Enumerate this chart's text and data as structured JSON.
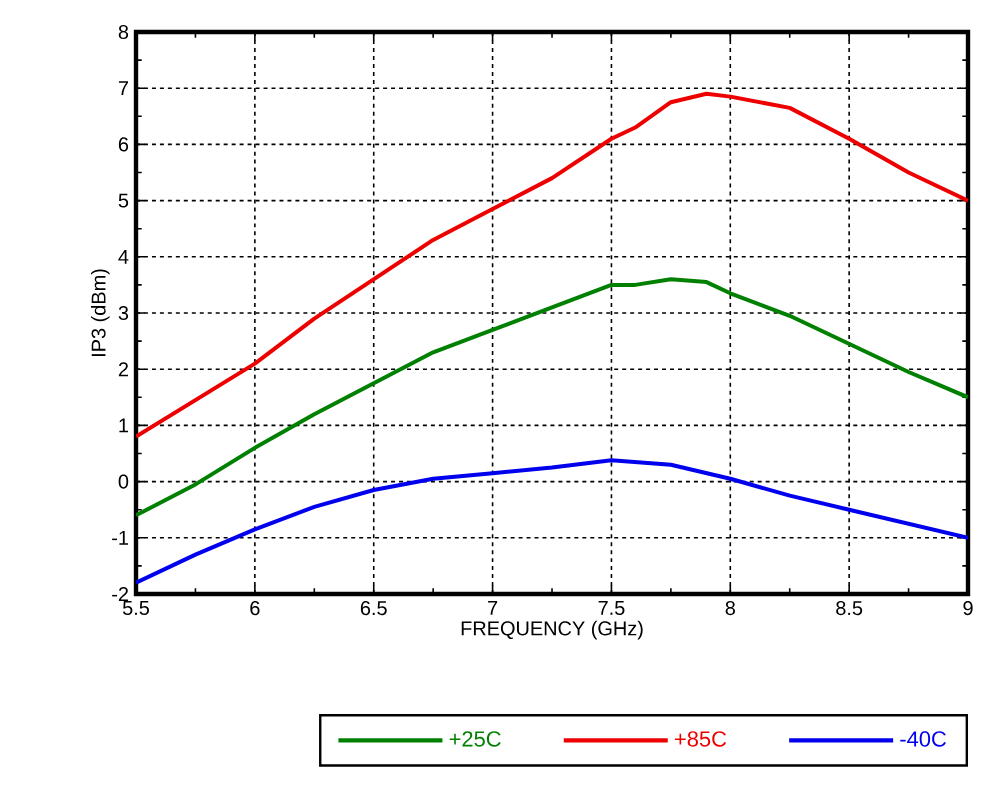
{
  "chart_data": {
    "type": "line",
    "xlabel": "FREQUENCY (GHz)",
    "ylabel": "IP3 (dBm)",
    "xlim": [
      5.5,
      9
    ],
    "ylim": [
      -2,
      8
    ],
    "xticks": [
      5.5,
      6,
      6.5,
      7,
      7.5,
      8,
      8.5,
      9
    ],
    "yticks": [
      -2,
      -1,
      0,
      1,
      2,
      3,
      4,
      5,
      6,
      7,
      8
    ],
    "grid": true,
    "legend": "bottom",
    "line_style": "solid",
    "x": [
      5.5,
      5.75,
      6,
      6.25,
      6.5,
      6.75,
      7,
      7.25,
      7.5,
      7.75,
      8,
      8.25,
      8.5,
      8.75,
      9
    ],
    "series": [
      {
        "name": "+25C",
        "color": "#008000",
        "x": [
          5.5,
          5.75,
          6,
          6.25,
          6.5,
          6.75,
          7,
          7.25,
          7.5,
          7.6,
          7.75,
          7.9,
          8,
          8.25,
          8.5,
          8.75,
          9
        ],
        "values": [
          -0.6,
          -0.05,
          0.6,
          1.2,
          1.75,
          2.3,
          2.7,
          3.1,
          3.5,
          3.5,
          3.6,
          3.55,
          3.35,
          2.95,
          2.45,
          1.95,
          1.5
        ]
      },
      {
        "name": "+85C",
        "color": "#ee0000",
        "x": [
          5.5,
          5.75,
          6,
          6.25,
          6.5,
          6.75,
          7,
          7.25,
          7.5,
          7.6,
          7.75,
          7.9,
          8,
          8.25,
          8.5,
          8.75,
          9
        ],
        "values": [
          0.8,
          1.45,
          2.1,
          2.9,
          3.6,
          4.3,
          4.85,
          5.4,
          6.1,
          6.3,
          6.75,
          6.9,
          6.85,
          6.65,
          6.1,
          5.5,
          5.0
        ]
      },
      {
        "name": "-40C",
        "color": "#0000ee",
        "values": [
          -1.8,
          -1.3,
          -0.85,
          -0.45,
          -0.15,
          0.05,
          0.15,
          0.25,
          0.38,
          0.3,
          0.05,
          -0.25,
          -0.5,
          -0.75,
          -1.0
        ]
      }
    ]
  }
}
